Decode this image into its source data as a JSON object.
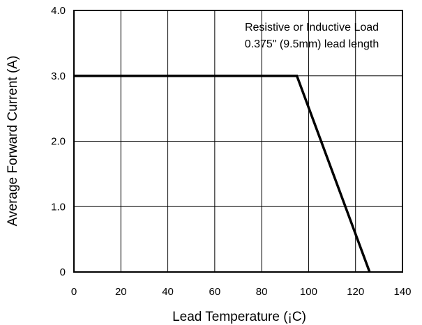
{
  "chart_data": {
    "type": "line",
    "title": "",
    "xlabel": "Lead Temperature (¡C)",
    "ylabel": "Average Forward Current (A)",
    "xlim": [
      0,
      140
    ],
    "ylim": [
      0,
      4
    ],
    "x_ticks": [
      0,
      20,
      40,
      60,
      80,
      100,
      120,
      140
    ],
    "y_ticks": [
      0,
      1,
      2,
      3,
      4
    ],
    "x_tick_labels": [
      "0",
      "20",
      "40",
      "60",
      "80",
      "100",
      "120",
      "140"
    ],
    "y_tick_labels": [
      "0",
      "1.0",
      "2.0",
      "3.0",
      "4.0"
    ],
    "grid": true,
    "legend": "none",
    "annotations": [
      "Resistive or Inductive Load",
      "0.375\" (9.5mm) lead length"
    ],
    "series": [
      {
        "x": [
          0,
          95,
          126
        ],
        "y": [
          3.0,
          3.0,
          0.0
        ]
      }
    ]
  }
}
